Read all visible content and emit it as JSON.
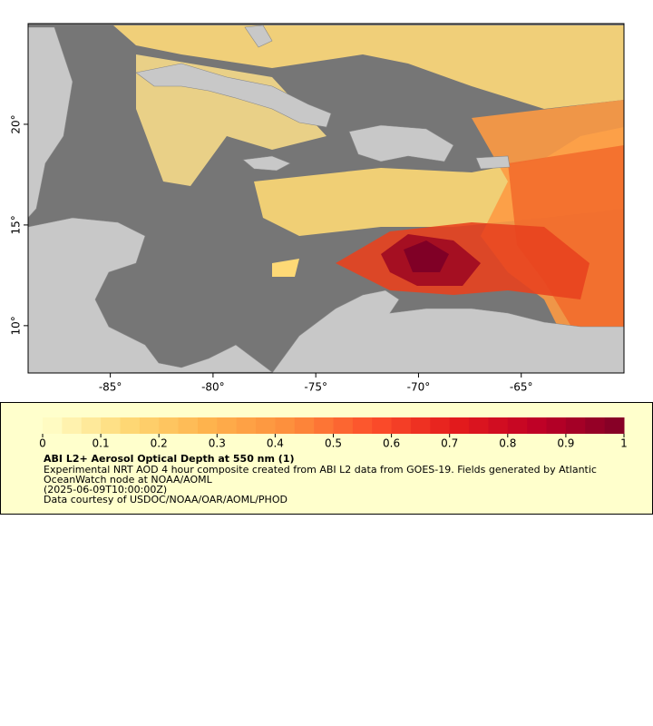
{
  "map": {
    "xlim": [
      -89,
      -60
    ],
    "ylim": [
      7.65,
      25
    ],
    "xticks": [
      {
        "value": -85,
        "label": "-85°"
      },
      {
        "value": -80,
        "label": "-80°"
      },
      {
        "value": -75,
        "label": "-75°"
      },
      {
        "value": -70,
        "label": "-70°"
      },
      {
        "value": -65,
        "label": "-65°"
      }
    ],
    "yticks": [
      {
        "value": 10,
        "label": "10°"
      },
      {
        "value": 15,
        "label": "15°"
      },
      {
        "value": 20,
        "label": "20°"
      }
    ]
  },
  "colorbar": {
    "lim": [
      0,
      1
    ],
    "ticks": [
      0,
      0.1,
      0.2,
      0.3,
      0.4,
      0.5,
      0.6,
      0.7,
      0.8,
      0.9,
      1
    ],
    "colors": [
      "#ffffcc",
      "#fed976",
      "#feb24c",
      "#fd8d3c",
      "#fc4e2a",
      "#e31a1c",
      "#bd0026",
      "#800026"
    ]
  },
  "legend": {
    "title": "ABI L2+ Aerosol Optical Depth at 550 nm (1)",
    "lines": [
      "Experimental NRT AOD 4 hour composite created from ABI L2 data from GOES-19. Fields generated by Atlantic",
      "OceanWatch node at NOAA/AOML",
      "(2025-06-09T10:00:00Z)",
      "Data courtesy of USDOC/NOAA/OAR/AOML/PHOD"
    ]
  }
}
